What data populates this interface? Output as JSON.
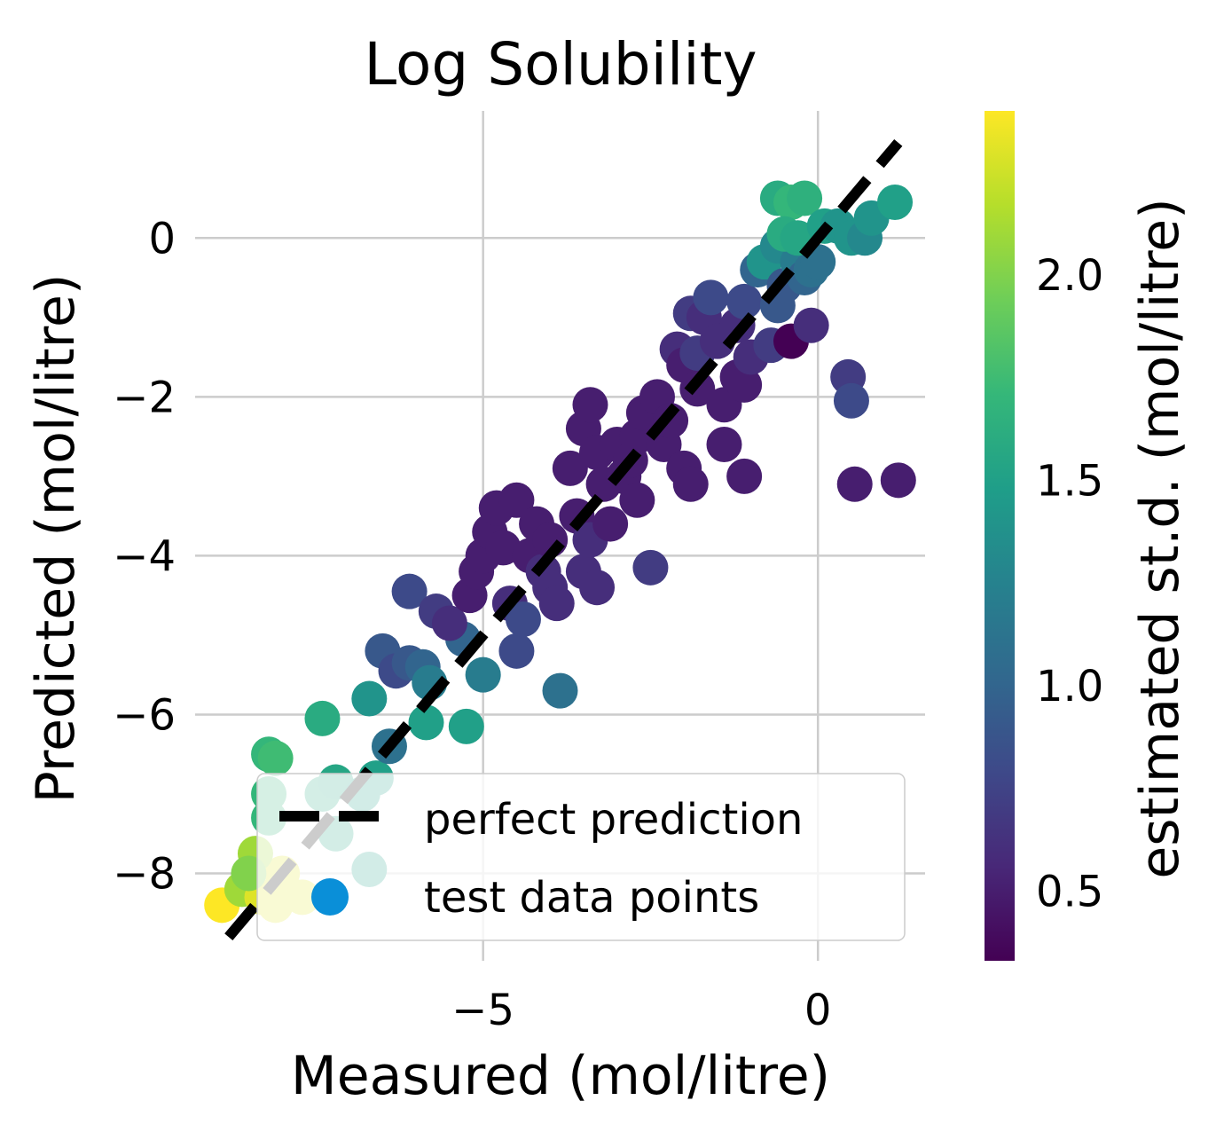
{
  "chart_data": {
    "type": "scatter",
    "title": "Log Solubility",
    "xlabel": "Measured (mol/litre)",
    "ylabel": "Predicted (mol/litre)",
    "xlim": [
      -9.3,
      1.6
    ],
    "ylim": [
      -9.1,
      1.6
    ],
    "xticks": [
      {
        "value": -5,
        "label": "−5"
      },
      {
        "value": 0,
        "label": "0"
      }
    ],
    "yticks": [
      {
        "value": 0,
        "label": "0"
      },
      {
        "value": -2,
        "label": "−2"
      },
      {
        "value": -4,
        "label": "−4"
      },
      {
        "value": -6,
        "label": "−6"
      },
      {
        "value": -8,
        "label": "−8"
      }
    ],
    "grid": true,
    "colorbar": {
      "label": "estimated st.d. (mol/litre)",
      "min": 0.33,
      "max": 2.4,
      "ticks": [
        {
          "value": 0.5,
          "label": "0.5"
        },
        {
          "value": 1.0,
          "label": "1.0"
        },
        {
          "value": 1.5,
          "label": "1.5"
        },
        {
          "value": 2.0,
          "label": "2.0"
        }
      ],
      "colormap": [
        "#440154",
        "#482878",
        "#3e4989",
        "#31688e",
        "#26828e",
        "#1f9e89",
        "#35b779",
        "#6ece58",
        "#b5de2b",
        "#fde725"
      ]
    },
    "legend": {
      "location": "lower right",
      "entries": [
        {
          "label": "perfect prediction",
          "marker": "dashed-line",
          "color": "#000000"
        },
        {
          "label": "test data points",
          "marker": "circle",
          "color": "#0a8fd8"
        }
      ]
    },
    "perfect_line": {
      "x": [
        -8.8,
        1.2
      ],
      "y": [
        -8.8,
        1.2
      ]
    },
    "series": [
      {
        "name": "test data points",
        "points": [
          [
            -8.9,
            -8.4,
            2.4
          ],
          [
            -8.6,
            -8.2,
            2.1
          ],
          [
            -8.3,
            -8.3,
            2.3
          ],
          [
            -8.0,
            -8.0,
            2.3
          ],
          [
            -8.4,
            -7.75,
            2.1
          ],
          [
            -7.7,
            -8.3,
            2.3
          ],
          [
            -8.1,
            -8.4,
            2.3
          ],
          [
            -8.5,
            -8.0,
            2.0
          ],
          [
            -8.2,
            -7.0,
            1.7
          ],
          [
            -8.2,
            -7.3,
            1.7
          ],
          [
            -8.2,
            -6.5,
            1.7
          ],
          [
            -8.1,
            -6.55,
            1.75
          ],
          [
            -7.4,
            -6.05,
            1.6
          ],
          [
            -7.4,
            -7.0,
            1.6
          ],
          [
            -7.2,
            -6.85,
            1.55
          ],
          [
            -7.2,
            -7.5,
            1.55
          ],
          [
            -6.8,
            -7.0,
            1.5
          ],
          [
            -6.7,
            -5.8,
            1.4
          ],
          [
            -6.6,
            -6.8,
            1.5
          ],
          [
            -6.7,
            -7.95,
            1.5
          ],
          [
            -6.4,
            -6.4,
            1.1
          ],
          [
            -6.5,
            -5.2,
            0.9
          ],
          [
            -6.3,
            -5.45,
            0.8
          ],
          [
            -6.1,
            -5.35,
            0.9
          ],
          [
            -6.1,
            -4.45,
            0.8
          ],
          [
            -5.9,
            -5.4,
            1.0
          ],
          [
            -5.8,
            -5.6,
            1.2
          ],
          [
            -5.7,
            -4.7,
            0.7
          ],
          [
            -5.85,
            -6.1,
            1.5
          ],
          [
            -5.25,
            -6.15,
            1.5
          ],
          [
            -5.0,
            -5.5,
            1.2
          ],
          [
            -5.3,
            -5.05,
            1.0
          ],
          [
            -5.5,
            -4.85,
            0.6
          ],
          [
            -5.2,
            -4.5,
            0.5
          ],
          [
            -5.1,
            -4.2,
            0.5
          ],
          [
            -5.0,
            -4.0,
            0.5
          ],
          [
            -4.9,
            -3.7,
            0.5
          ],
          [
            -4.8,
            -3.4,
            0.5
          ],
          [
            -4.7,
            -3.9,
            0.5
          ],
          [
            -4.6,
            -4.6,
            0.6
          ],
          [
            -4.5,
            -5.2,
            0.8
          ],
          [
            -4.4,
            -4.8,
            0.8
          ],
          [
            -4.5,
            -3.3,
            0.5
          ],
          [
            -4.3,
            -4.0,
            0.5
          ],
          [
            -4.2,
            -3.6,
            0.5
          ],
          [
            -4.1,
            -4.2,
            0.6
          ],
          [
            -4.0,
            -3.8,
            0.5
          ],
          [
            -4.0,
            -4.4,
            0.6
          ],
          [
            -3.9,
            -4.6,
            0.6
          ],
          [
            -3.85,
            -5.7,
            1.1
          ],
          [
            -3.7,
            -2.9,
            0.5
          ],
          [
            -3.6,
            -3.5,
            0.5
          ],
          [
            -3.5,
            -4.2,
            0.6
          ],
          [
            -3.5,
            -2.4,
            0.5
          ],
          [
            -3.4,
            -3.8,
            0.6
          ],
          [
            -3.3,
            -2.7,
            0.5
          ],
          [
            -3.3,
            -4.4,
            0.6
          ],
          [
            -3.4,
            -2.1,
            0.5
          ],
          [
            -3.2,
            -3.1,
            0.5
          ],
          [
            -3.1,
            -3.6,
            0.5
          ],
          [
            -3.0,
            -2.6,
            0.5
          ],
          [
            -2.9,
            -3.0,
            0.5
          ],
          [
            -2.8,
            -2.8,
            0.5
          ],
          [
            -2.7,
            -2.5,
            0.5
          ],
          [
            -2.7,
            -3.3,
            0.5
          ],
          [
            -2.6,
            -2.2,
            0.5
          ],
          [
            -2.5,
            -4.15,
            0.7
          ],
          [
            -2.4,
            -2.0,
            0.5
          ],
          [
            -2.3,
            -2.6,
            0.5
          ],
          [
            -2.2,
            -2.3,
            0.5
          ],
          [
            -2.1,
            -1.4,
            0.6
          ],
          [
            -2.0,
            -2.9,
            0.5
          ],
          [
            -2.0,
            -1.6,
            0.5
          ],
          [
            -1.9,
            -3.1,
            0.5
          ],
          [
            -1.9,
            -0.95,
            0.7
          ],
          [
            -1.8,
            -1.9,
            0.5
          ],
          [
            -1.8,
            -1.45,
            0.7
          ],
          [
            -1.7,
            -1.0,
            0.6
          ],
          [
            -1.6,
            -0.75,
            0.8
          ],
          [
            -1.5,
            -1.3,
            0.6
          ],
          [
            -1.4,
            -2.1,
            0.5
          ],
          [
            -1.4,
            -2.6,
            0.5
          ],
          [
            -1.2,
            -1.75,
            0.5
          ],
          [
            -1.1,
            -1.85,
            0.5
          ],
          [
            -1.2,
            -1.1,
            0.6
          ],
          [
            -1.1,
            -0.8,
            0.8
          ],
          [
            -1.0,
            -1.5,
            0.6
          ],
          [
            -1.1,
            -3.0,
            0.5
          ],
          [
            -0.9,
            -0.4,
            1.0
          ],
          [
            -0.8,
            -0.3,
            1.4
          ],
          [
            -0.7,
            -1.35,
            0.7
          ],
          [
            -0.6,
            -0.1,
            1.3
          ],
          [
            -0.6,
            -0.85,
            0.9
          ],
          [
            -0.4,
            -1.3,
            0.33
          ],
          [
            -0.5,
            -0.6,
            0.9
          ],
          [
            -0.3,
            -0.3,
            1.2
          ],
          [
            -0.2,
            -0.5,
            1.0
          ],
          [
            -0.1,
            -0.4,
            1.1
          ],
          [
            0.0,
            -0.3,
            1.1
          ],
          [
            -0.1,
            -1.1,
            0.6
          ],
          [
            -0.6,
            0.5,
            1.6
          ],
          [
            -0.4,
            0.45,
            1.7
          ],
          [
            -0.2,
            0.5,
            1.65
          ],
          [
            -0.5,
            0.05,
            1.6
          ],
          [
            -0.3,
            0.0,
            1.55
          ],
          [
            0.1,
            0.15,
            1.5
          ],
          [
            0.3,
            0.15,
            1.4
          ],
          [
            0.5,
            0.0,
            1.4
          ],
          [
            0.7,
            0.0,
            1.3
          ],
          [
            0.8,
            0.25,
            1.4
          ],
          [
            1.15,
            0.45,
            1.5
          ],
          [
            0.45,
            -1.75,
            0.7
          ],
          [
            0.5,
            -2.05,
            0.8
          ],
          [
            0.55,
            -3.1,
            0.5
          ],
          [
            1.2,
            -3.05,
            0.5
          ]
        ]
      }
    ]
  }
}
